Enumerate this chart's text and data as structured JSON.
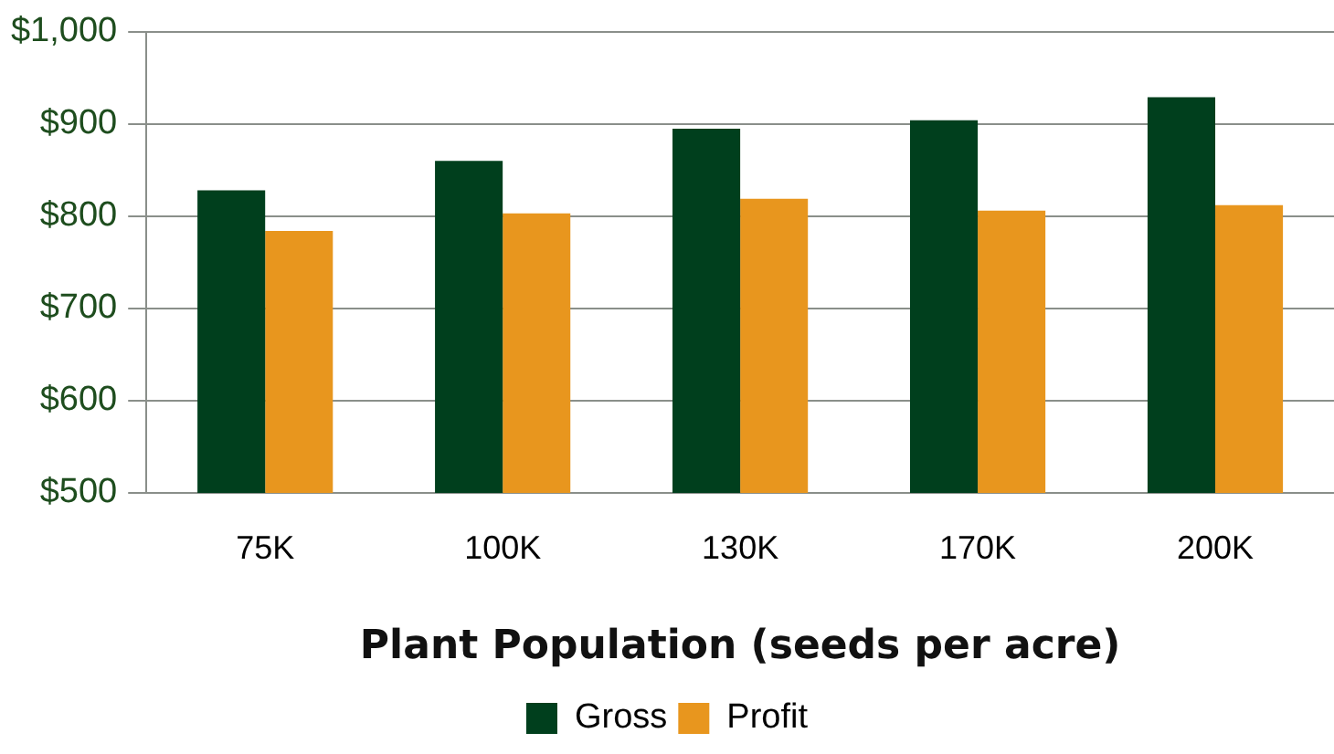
{
  "chart_data": {
    "type": "bar",
    "xlabel": "Plant Population (seeds per acre)",
    "categories": [
      "75K",
      "100K",
      "130K",
      "170K",
      "200K"
    ],
    "series": [
      {
        "name": "Gross",
        "color": "#003f1d",
        "values": [
          828,
          860,
          895,
          904,
          929
        ]
      },
      {
        "name": "Profit",
        "color": "#e8961e",
        "values": [
          784,
          803,
          819,
          806,
          812
        ]
      }
    ],
    "ylim": [
      500,
      1000
    ],
    "yticks": [
      {
        "value": 500,
        "label": "$500"
      },
      {
        "value": 600,
        "label": "$600"
      },
      {
        "value": 700,
        "label": "$700"
      },
      {
        "value": 800,
        "label": "$800"
      },
      {
        "value": 900,
        "label": "$900"
      },
      {
        "value": 1000,
        "label": "$1,000"
      }
    ],
    "grid": "y",
    "legend": "bottom"
  }
}
